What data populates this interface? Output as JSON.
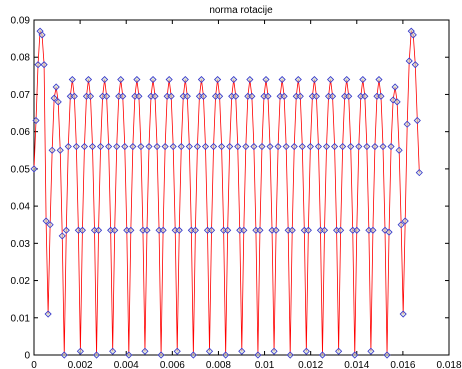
{
  "chart_data": {
    "type": "line",
    "title": "norma rotacije",
    "x": [
      0,
      8.75e-05,
      0.000175,
      0.0002625,
      0.00035,
      0.0004375,
      0.000525,
      0.0006125,
      0.0007,
      0.0007875,
      0.000875,
      0.0009625,
      0.00105,
      0.0011375,
      0.001225,
      0.0013125,
      0.0014,
      0.0014875,
      0.001575,
      0.0016625,
      0.00175,
      0.0018375,
      0.001925,
      0.0020125,
      0.0021,
      0.0021875,
      0.002275,
      0.0023625,
      0.00245,
      0.0025375,
      0.002625,
      0.0027125,
      0.0028,
      0.0028875,
      0.002975,
      0.0030625,
      0.00315,
      0.0032375,
      0.003325,
      0.0034125,
      0.0035,
      0.0035875,
      0.003675,
      0.0037625,
      0.00385,
      0.0039375,
      0.004025,
      0.0041125,
      0.0042,
      0.0042875,
      0.004375,
      0.0044625,
      0.00455,
      0.0046375,
      0.004725,
      0.0048125,
      0.0049,
      0.0049875,
      0.005075,
      0.0051625,
      0.00525,
      0.0053375,
      0.005425,
      0.0055125,
      0.0056,
      0.0056875,
      0.005775,
      0.0058625,
      0.00595,
      0.0060375,
      0.006125,
      0.0062125,
      0.0063,
      0.0063875,
      0.006475,
      0.0065625,
      0.00665,
      0.0067375,
      0.006825,
      0.0069125,
      0.007,
      0.0070875,
      0.007175,
      0.0072625,
      0.00735,
      0.0074375,
      0.007525,
      0.0076125,
      0.0077,
      0.0077875,
      0.007875,
      0.0079625,
      0.00805,
      0.0081375,
      0.008225,
      0.0083125,
      0.0084,
      0.0084875,
      0.008575,
      0.0086625,
      0.00875,
      0.0088375,
      0.008925,
      0.0090125,
      0.0091,
      0.0091875,
      0.009275,
      0.0093625,
      0.00945,
      0.0095375,
      0.009625,
      0.0097125,
      0.0098,
      0.0098875,
      0.009975,
      0.0100625,
      0.01015,
      0.0102375,
      0.010325,
      0.0104125,
      0.0105,
      0.0105875,
      0.010675,
      0.0107625,
      0.01085,
      0.0109375,
      0.011025,
      0.0111125,
      0.0112,
      0.0112875,
      0.011375,
      0.0114625,
      0.01155,
      0.0116375,
      0.011725,
      0.0118125,
      0.0119,
      0.0119875,
      0.012075,
      0.0121625,
      0.01225,
      0.0123375,
      0.012425,
      0.0125125,
      0.0126,
      0.0126875,
      0.012775,
      0.0128625,
      0.01295,
      0.0130375,
      0.013125,
      0.0132125,
      0.0133,
      0.0133875,
      0.013475,
      0.0135625,
      0.01365,
      0.0137375,
      0.013825,
      0.0139125,
      0.014,
      0.0140875,
      0.014175,
      0.0142625,
      0.01435,
      0.0144375,
      0.014525,
      0.0146125,
      0.0147,
      0.0147875,
      0.014875,
      0.0149625,
      0.01505,
      0.0151375,
      0.015225,
      0.0153125,
      0.0154,
      0.0154875,
      0.015575,
      0.0156625,
      0.01575,
      0.0158375,
      0.015925,
      0.0160125,
      0.0161,
      0.0161875,
      0.016275,
      0.0163625,
      0.01645,
      0.0165375,
      0.016625,
      0.0167125
    ],
    "values": [
      0.05,
      0.063,
      0.078,
      0.087,
      0.086,
      0.078,
      0.036,
      0.011,
      0.035,
      0.055,
      0.069,
      0.072,
      0.068,
      0.055,
      0.032,
      0,
      0.0335,
      0.056,
      0.0695,
      0.074,
      0.0695,
      0.056,
      0.0335,
      0.001,
      0.0335,
      0.056,
      0.0695,
      0.074,
      0.0695,
      0.056,
      0.0335,
      0,
      0.0335,
      0.056,
      0.0695,
      0.074,
      0.0695,
      0.056,
      0.0335,
      0.001,
      0.0335,
      0.056,
      0.0695,
      0.074,
      0.0695,
      0.056,
      0.0335,
      0,
      0.0335,
      0.056,
      0.0695,
      0.074,
      0.0695,
      0.056,
      0.0335,
      0.001,
      0.0335,
      0.056,
      0.0695,
      0.074,
      0.0695,
      0.056,
      0.0335,
      0,
      0.0335,
      0.056,
      0.0695,
      0.074,
      0.0695,
      0.056,
      0.0335,
      0.001,
      0.0335,
      0.056,
      0.0695,
      0.074,
      0.0695,
      0.056,
      0.0335,
      0,
      0.0335,
      0.056,
      0.0695,
      0.074,
      0.0695,
      0.056,
      0.0335,
      0.001,
      0.0335,
      0.056,
      0.0695,
      0.074,
      0.0695,
      0.056,
      0.0335,
      0,
      0.0335,
      0.056,
      0.0695,
      0.074,
      0.0695,
      0.056,
      0.0335,
      0.001,
      0.0335,
      0.056,
      0.0695,
      0.074,
      0.0695,
      0.056,
      0.0335,
      0,
      0.0335,
      0.056,
      0.0695,
      0.074,
      0.0695,
      0.056,
      0.0335,
      0.001,
      0.0335,
      0.056,
      0.0695,
      0.074,
      0.0695,
      0.056,
      0.0335,
      0,
      0.0335,
      0.056,
      0.0695,
      0.074,
      0.0695,
      0.056,
      0.0335,
      0.001,
      0.0335,
      0.056,
      0.0695,
      0.074,
      0.0695,
      0.056,
      0.0335,
      0,
      0.0335,
      0.056,
      0.0695,
      0.074,
      0.0695,
      0.056,
      0.0335,
      0.001,
      0.0335,
      0.056,
      0.0695,
      0.074,
      0.0695,
      0.056,
      0.0335,
      0,
      0.0335,
      0.056,
      0.0695,
      0.074,
      0.0695,
      0.056,
      0.0335,
      0.001,
      0.0335,
      0.056,
      0.0695,
      0.074,
      0.0695,
      0.056,
      0.0335,
      0,
      0.033,
      0.056,
      0.0685,
      0.072,
      0.068,
      0.055,
      0.035,
      0.011,
      0.036,
      0.062,
      0.079,
      0.087,
      0.086,
      0.078,
      0.063,
      0.049
    ],
    "color": "#ff0000",
    "marker": "diamond",
    "marker_color": "#3333cc",
    "xlim": [
      0,
      0.018
    ],
    "xticks": [
      0,
      0.002,
      0.004,
      0.006,
      0.008,
      0.01,
      0.012,
      0.014,
      0.016,
      0.018
    ],
    "ylim": [
      0,
      0.09
    ],
    "yticks": [
      0,
      0.01,
      0.02,
      0.03,
      0.04,
      0.05,
      0.06,
      0.07,
      0.08,
      0.09
    ],
    "grid": false
  }
}
